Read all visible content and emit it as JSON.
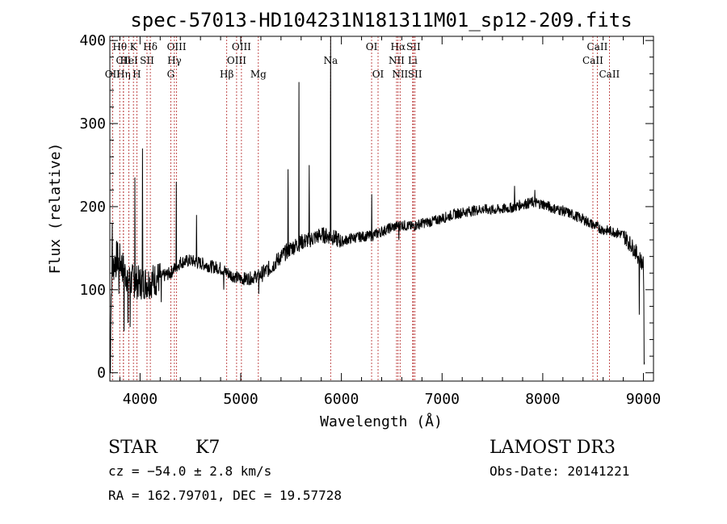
{
  "chart_data": {
    "type": "line",
    "title": "spec-57013-HD104231N181311M01_sp12-209.fits",
    "xlabel": "Wavelength (Å)",
    "ylabel": "Flux (relative)",
    "xlim": [
      3700,
      9100
    ],
    "ylim": [
      -10,
      405
    ],
    "xticks": [
      4000,
      5000,
      6000,
      7000,
      8000,
      9000
    ],
    "yticks": [
      0,
      100,
      200,
      300,
      400
    ],
    "grid": false,
    "line_markers": [
      {
        "label": "Hθ",
        "wavelength": 3798,
        "row": 0
      },
      {
        "label": "CII",
        "wavelength": 3835,
        "row": 1
      },
      {
        "label": "OII",
        "wavelength": 3727,
        "row": 2
      },
      {
        "label": "Hη",
        "wavelength": 3835,
        "row": 2
      },
      {
        "label": "K",
        "wavelength": 3934,
        "row": 0
      },
      {
        "label": "HeI",
        "wavelength": 3889,
        "row": 1
      },
      {
        "label": "H",
        "wavelength": 3968,
        "row": 2
      },
      {
        "label": "Hδ",
        "wavelength": 4102,
        "row": 0
      },
      {
        "label": "SII",
        "wavelength": 4069,
        "row": 1
      },
      {
        "label": "OIII",
        "wavelength": 4363,
        "row": 0
      },
      {
        "label": "Hγ",
        "wavelength": 4341,
        "row": 1
      },
      {
        "label": "G",
        "wavelength": 4305,
        "row": 2
      },
      {
        "label": "OIII",
        "wavelength": 5007,
        "row": 0
      },
      {
        "label": "OIII",
        "wavelength": 4959,
        "row": 1
      },
      {
        "label": "Hβ",
        "wavelength": 4861,
        "row": 2
      },
      {
        "label": "Mg",
        "wavelength": 5175,
        "row": 2
      },
      {
        "label": "Na",
        "wavelength": 5893,
        "row": 1
      },
      {
        "label": "OI",
        "wavelength": 6300,
        "row": 0
      },
      {
        "label": "OI",
        "wavelength": 6364,
        "row": 2
      },
      {
        "label": "Hα",
        "wavelength": 6563,
        "row": 0
      },
      {
        "label": "NII",
        "wavelength": 6548,
        "row": 1
      },
      {
        "label": "NII",
        "wavelength": 6583,
        "row": 2
      },
      {
        "label": "SII",
        "wavelength": 6716,
        "row": 0
      },
      {
        "label": "Li",
        "wavelength": 6708,
        "row": 1
      },
      {
        "label": "SII",
        "wavelength": 6731,
        "row": 2
      },
      {
        "label": "CaII",
        "wavelength": 8542,
        "row": 0
      },
      {
        "label": "CaII",
        "wavelength": 8498,
        "row": 1
      },
      {
        "label": "CaII",
        "wavelength": 8662,
        "row": 2
      }
    ],
    "continuum": [
      [
        3700,
        20
      ],
      [
        3720,
        120
      ],
      [
        3760,
        140
      ],
      [
        3800,
        135
      ],
      [
        3850,
        120
      ],
      [
        3900,
        112
      ],
      [
        3950,
        110
      ],
      [
        4000,
        108
      ],
      [
        4100,
        110
      ],
      [
        4200,
        115
      ],
      [
        4300,
        120
      ],
      [
        4400,
        133
      ],
      [
        4500,
        135
      ],
      [
        4600,
        132
      ],
      [
        4700,
        128
      ],
      [
        4800,
        126
      ],
      [
        4900,
        118
      ],
      [
        5000,
        113
      ],
      [
        5100,
        114
      ],
      [
        5200,
        118
      ],
      [
        5300,
        127
      ],
      [
        5400,
        140
      ],
      [
        5500,
        150
      ],
      [
        5600,
        157
      ],
      [
        5700,
        161
      ],
      [
        5800,
        166
      ],
      [
        5900,
        164
      ],
      [
        6000,
        158
      ],
      [
        6100,
        162
      ],
      [
        6200,
        164
      ],
      [
        6300,
        165
      ],
      [
        6400,
        170
      ],
      [
        6500,
        175
      ],
      [
        6600,
        178
      ],
      [
        6700,
        176
      ],
      [
        6800,
        180
      ],
      [
        6900,
        182
      ],
      [
        7000,
        186
      ],
      [
        7100,
        190
      ],
      [
        7200,
        193
      ],
      [
        7300,
        195
      ],
      [
        7400,
        197
      ],
      [
        7500,
        196
      ],
      [
        7600,
        197
      ],
      [
        7700,
        199
      ],
      [
        7800,
        203
      ],
      [
        7900,
        205
      ],
      [
        8000,
        203
      ],
      [
        8100,
        198
      ],
      [
        8200,
        195
      ],
      [
        8300,
        190
      ],
      [
        8400,
        185
      ],
      [
        8500,
        178
      ],
      [
        8600,
        172
      ],
      [
        8700,
        170
      ],
      [
        8800,
        166
      ],
      [
        8900,
        150
      ],
      [
        8950,
        140
      ],
      [
        9000,
        130
      ],
      [
        9010,
        20
      ]
    ],
    "spikes": [
      [
        3725,
        180
      ],
      [
        3760,
        115
      ],
      [
        3790,
        95
      ],
      [
        3880,
        60
      ],
      [
        3950,
        235
      ],
      [
        4025,
        270
      ],
      [
        4360,
        230
      ],
      [
        4560,
        190
      ],
      [
        5470,
        245
      ],
      [
        5577,
        350
      ],
      [
        5680,
        250
      ],
      [
        5893,
        405
      ],
      [
        6300,
        215
      ],
      [
        7720,
        225
      ],
      [
        7920,
        220
      ]
    ],
    "dips": [
      [
        3705,
        0
      ],
      [
        3840,
        50
      ],
      [
        3900,
        55
      ],
      [
        4210,
        85
      ],
      [
        4830,
        100
      ],
      [
        5180,
        95
      ],
      [
        6570,
        160
      ],
      [
        8960,
        70
      ],
      [
        9008,
        10
      ]
    ]
  },
  "info": {
    "object_class": "STAR",
    "subclass": "K7",
    "survey": "LAMOST DR3",
    "redshift": "cz = −54.0 ± 2.8 km/s",
    "obs_date": "Obs-Date: 20141221",
    "coords": "RA = 162.79701, DEC =  19.57728"
  }
}
